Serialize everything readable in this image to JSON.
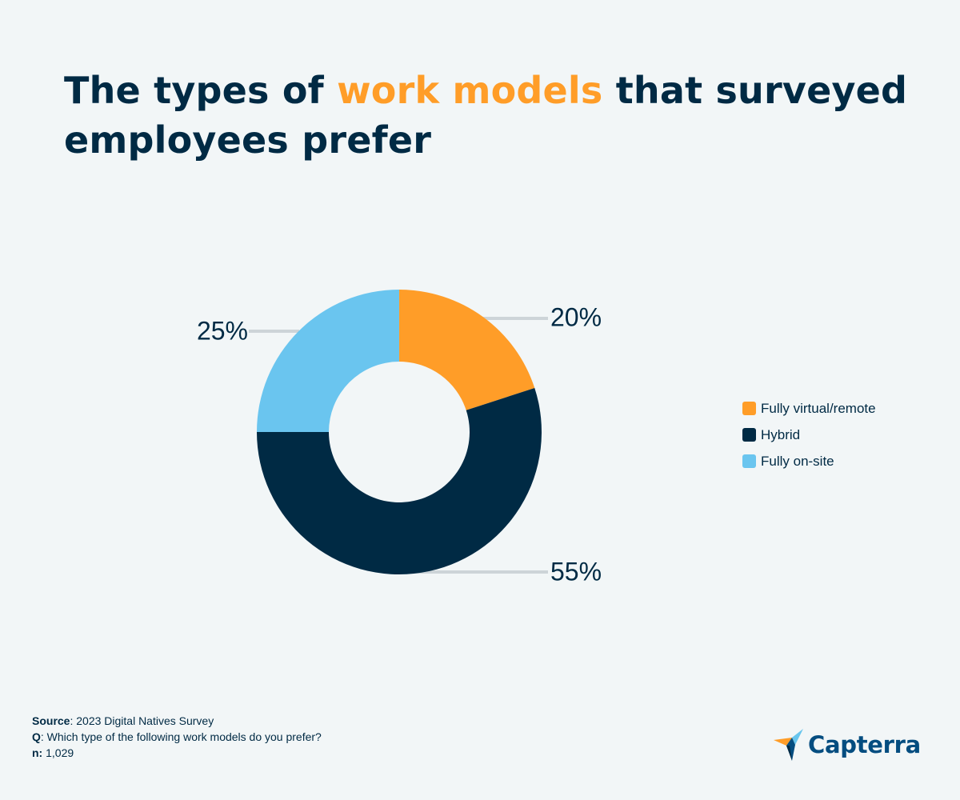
{
  "title": {
    "before": "The types of ",
    "highlight": "work models",
    "after": " that surveyed employees prefer"
  },
  "chart_data": {
    "type": "pie",
    "variant": "donut",
    "title": "The types of work models that surveyed employees prefer",
    "categories": [
      "Fully virtual/remote",
      "Hybrid",
      "Fully on-site"
    ],
    "values": [
      20,
      55,
      25
    ],
    "labels": [
      "20%",
      "55%",
      "25%"
    ],
    "colors": [
      "#ff9d28",
      "#002a44",
      "#6ac5ef"
    ],
    "legend_position": "right"
  },
  "footer": {
    "source_label": "Source",
    "source_text": ": 2023 Digital Natives Survey",
    "q_label": "Q",
    "q_text": ": Which type of the following work models do you prefer?",
    "n_label": "n:",
    "n_text": " 1,029"
  },
  "logo": {
    "text": "Capterra",
    "colors": {
      "orange": "#ff9d28",
      "blue": "#68c5ed",
      "navy": "#044d80",
      "dark": "#002a44"
    }
  }
}
